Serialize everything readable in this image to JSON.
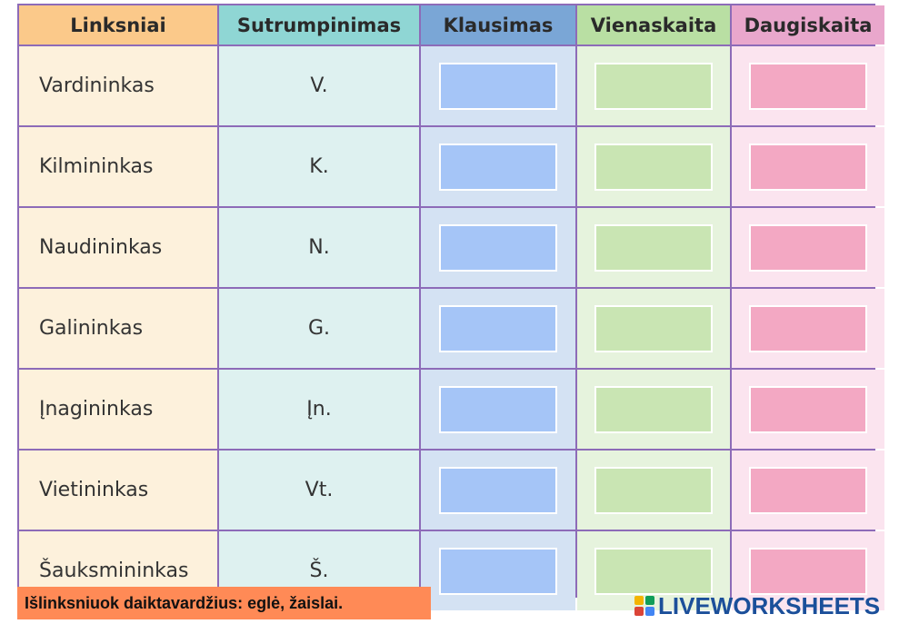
{
  "headers": [
    "Linksniai",
    "Sutrumpinimas",
    "Klausimas",
    "Vienaskaita",
    "Daugiskaita"
  ],
  "rows": [
    {
      "case": "Vardininkas",
      "abbr": "V."
    },
    {
      "case": "Kilmininkas",
      "abbr": "K."
    },
    {
      "case": "Naudininkas",
      "abbr": "N."
    },
    {
      "case": "Galininkas",
      "abbr": "G."
    },
    {
      "case": "Įnagininkas",
      "abbr": "Įn."
    },
    {
      "case": "Vietininkas",
      "abbr": "Vt."
    },
    {
      "case": "Šauksmininkas",
      "abbr": "Š."
    }
  ],
  "instruction": "Išlinksniuok daiktavardžius: eglė, žaislai.",
  "brand": "LIVEWORKSHEETS",
  "colors": {
    "header_linksniai": "#fbc98a",
    "header_sutrumpinimas": "#8fd6d4",
    "header_klausimas": "#7aa6d6",
    "header_vienaskaita": "#b9dfa3",
    "header_daugiskaita": "#e9a7cc",
    "input_blue": "#a5c5f7",
    "input_green": "#c9e5b3",
    "input_pink": "#f3a8c3",
    "banner": "#ff8a56",
    "grid_border": "#8d6bb8"
  }
}
